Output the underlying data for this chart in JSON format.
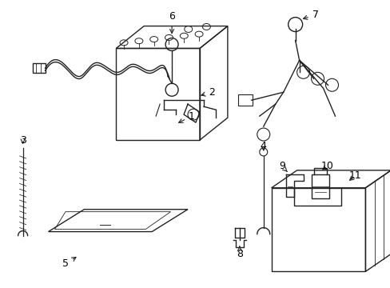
{
  "bg_color": "#ffffff",
  "line_color": "#222222",
  "label_color": "#000000",
  "fig_width": 4.89,
  "fig_height": 3.6,
  "dpi": 100
}
